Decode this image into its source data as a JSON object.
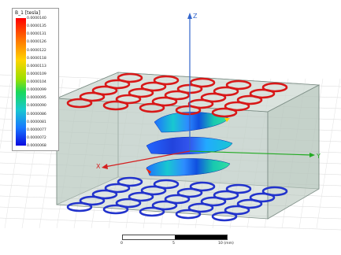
{
  "legend": {
    "title": "B_1 [tesla]",
    "ticks": [
      "0.0000140",
      "0.0000135",
      "0.0000131",
      "0.0000126",
      "0.0000122",
      "0.0000118",
      "0.0000113",
      "0.0000109",
      "0.0000104",
      "0.0000099",
      "0.0000095",
      "0.0000090",
      "0.0000086",
      "0.0000081",
      "0.0000077",
      "0.0000072",
      "0.0000068"
    ]
  },
  "axes": {
    "z": "Z",
    "y": "Y",
    "x": "X"
  },
  "coils": {
    "top": {
      "color": "#d81818",
      "rows": 5,
      "cols": 5
    },
    "bottom": {
      "color": "#2233cc",
      "rows": 5,
      "cols": 5
    }
  },
  "scale_bar": {
    "labels": [
      "0",
      "5",
      "10 (mm)"
    ]
  }
}
